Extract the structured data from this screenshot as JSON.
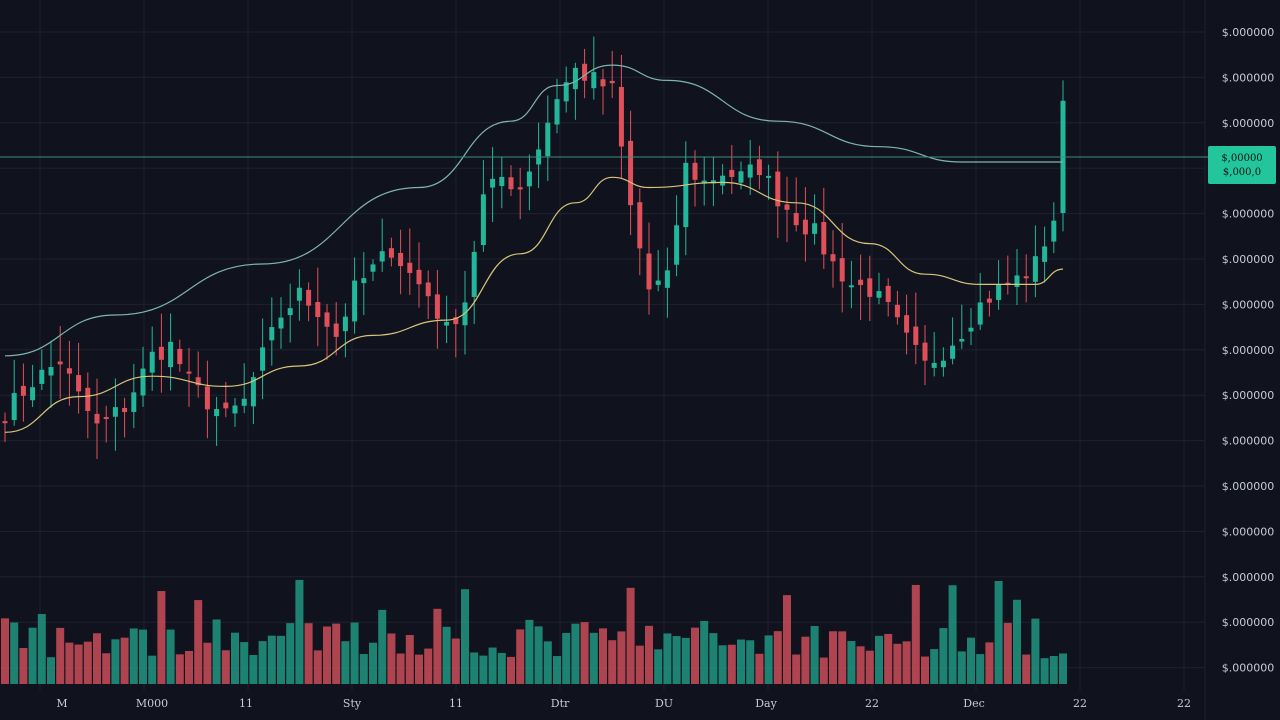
{
  "colors": {
    "background": "#10131d",
    "grid": "#1e2230",
    "up": "#22b79a",
    "down": "#e0505a",
    "up_volume": "#1f8f7c",
    "down_volume": "#c04a55",
    "ma_slow": "#7fb4ae",
    "ma_fast": "#d8c47a",
    "last_price_line": "#3d8d80",
    "last_price_badge": "#22c59c",
    "axis_text": "#c7cbd6"
  },
  "chart_data": {
    "type": "candlestick",
    "price_axis_labels": [
      "$.000000",
      "$.000000",
      "$.000000",
      "$.000000",
      "$.000000",
      "$.000000",
      "$.000000",
      "$.000000",
      "$.000000",
      "$.000000",
      "$.000000",
      "$.000000",
      "$.000000",
      "$.000000",
      "$.000000"
    ],
    "time_axis_labels": [
      "M",
      "M000",
      "11",
      "Sty",
      "11",
      "Dtr",
      "DU",
      "Day",
      "22",
      "Dec",
      "22",
      "22"
    ],
    "last_price_label": [
      "$,00000",
      "$,000,0"
    ],
    "y_range": [
      0,
      100
    ],
    "grid": true,
    "anchors": [
      {
        "i": 0,
        "c": 31
      },
      {
        "i": 3,
        "c": 37
      },
      {
        "i": 6,
        "c": 41
      },
      {
        "i": 8,
        "c": 34
      },
      {
        "i": 10,
        "c": 28
      },
      {
        "i": 13,
        "c": 32
      },
      {
        "i": 16,
        "c": 42
      },
      {
        "i": 18,
        "c": 44
      },
      {
        "i": 20,
        "c": 37
      },
      {
        "i": 22,
        "c": 33
      },
      {
        "i": 24,
        "c": 30
      },
      {
        "i": 26,
        "c": 33
      },
      {
        "i": 28,
        "c": 42
      },
      {
        "i": 30,
        "c": 50
      },
      {
        "i": 32,
        "c": 54
      },
      {
        "i": 34,
        "c": 51
      },
      {
        "i": 36,
        "c": 46
      },
      {
        "i": 38,
        "c": 55
      },
      {
        "i": 40,
        "c": 59
      },
      {
        "i": 42,
        "c": 63
      },
      {
        "i": 44,
        "c": 58
      },
      {
        "i": 46,
        "c": 54
      },
      {
        "i": 48,
        "c": 47
      },
      {
        "i": 50,
        "c": 53
      },
      {
        "i": 52,
        "c": 73
      },
      {
        "i": 54,
        "c": 77
      },
      {
        "i": 56,
        "c": 75
      },
      {
        "i": 58,
        "c": 83
      },
      {
        "i": 60,
        "c": 93
      },
      {
        "i": 62,
        "c": 98
      },
      {
        "i": 64,
        "c": 96
      },
      {
        "i": 66,
        "c": 94
      },
      {
        "i": 68,
        "c": 71
      },
      {
        "i": 70,
        "c": 55
      },
      {
        "i": 72,
        "c": 57
      },
      {
        "i": 74,
        "c": 79
      },
      {
        "i": 76,
        "c": 76
      },
      {
        "i": 78,
        "c": 78
      },
      {
        "i": 80,
        "c": 77
      },
      {
        "i": 82,
        "c": 79
      },
      {
        "i": 84,
        "c": 73
      },
      {
        "i": 86,
        "c": 69
      },
      {
        "i": 88,
        "c": 66
      },
      {
        "i": 90,
        "c": 60
      },
      {
        "i": 92,
        "c": 56
      },
      {
        "i": 94,
        "c": 55
      },
      {
        "i": 96,
        "c": 51
      },
      {
        "i": 98,
        "c": 45
      },
      {
        "i": 100,
        "c": 40
      },
      {
        "i": 102,
        "c": 43
      },
      {
        "i": 104,
        "c": 47
      },
      {
        "i": 106,
        "c": 52
      },
      {
        "i": 108,
        "c": 55
      },
      {
        "i": 110,
        "c": 57
      },
      {
        "i": 112,
        "c": 60
      },
      {
        "i": 114,
        "c": 69
      },
      {
        "i": 115,
        "c": 92
      }
    ],
    "ma_slow": [
      {
        "i": 0,
        "v": 42
      },
      {
        "i": 12,
        "v": 50
      },
      {
        "i": 28,
        "v": 60
      },
      {
        "i": 45,
        "v": 75
      },
      {
        "i": 55,
        "v": 88
      },
      {
        "i": 60,
        "v": 95
      },
      {
        "i": 66,
        "v": 99
      },
      {
        "i": 72,
        "v": 96
      },
      {
        "i": 84,
        "v": 88
      },
      {
        "i": 95,
        "v": 83
      },
      {
        "i": 104,
        "v": 80
      },
      {
        "i": 115,
        "v": 80
      }
    ],
    "ma_fast": [
      {
        "i": 0,
        "v": 27
      },
      {
        "i": 8,
        "v": 34
      },
      {
        "i": 16,
        "v": 38
      },
      {
        "i": 24,
        "v": 36
      },
      {
        "i": 32,
        "v": 40
      },
      {
        "i": 40,
        "v": 46
      },
      {
        "i": 48,
        "v": 49
      },
      {
        "i": 56,
        "v": 62
      },
      {
        "i": 62,
        "v": 72
      },
      {
        "i": 66,
        "v": 77
      },
      {
        "i": 70,
        "v": 75
      },
      {
        "i": 78,
        "v": 76
      },
      {
        "i": 86,
        "v": 72
      },
      {
        "i": 94,
        "v": 64
      },
      {
        "i": 100,
        "v": 58
      },
      {
        "i": 106,
        "v": 56
      },
      {
        "i": 112,
        "v": 56
      },
      {
        "i": 115,
        "v": 59
      }
    ]
  }
}
